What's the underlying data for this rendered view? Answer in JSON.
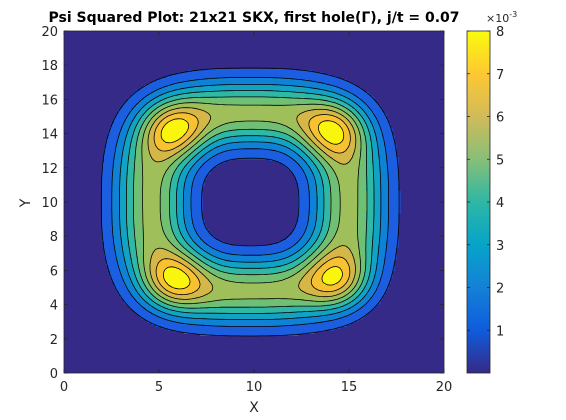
{
  "chart_data": {
    "type": "contour",
    "title": "Psi Squared Plot: 21x21 SKX, first hole(Γ), j/t = 0.07",
    "xlabel": "X",
    "ylabel": "Y",
    "xlim": [
      0,
      20
    ],
    "ylim": [
      0,
      20
    ],
    "xticks": [
      "0",
      "5",
      "10",
      "15",
      "20"
    ],
    "yticks": [
      "0",
      "2",
      "4",
      "6",
      "8",
      "10",
      "12",
      "14",
      "16",
      "18",
      "20"
    ],
    "colorbar": {
      "ticks": [
        "1",
        "2",
        "3",
        "4",
        "5",
        "6",
        "7",
        "8"
      ],
      "exponent_label": "×10",
      "exponent_power": "-3",
      "range": [
        0,
        0.008
      ],
      "colormap": "parula"
    },
    "contour_levels": [
      0.0008,
      0.0016,
      0.0024,
      0.0032,
      0.004,
      0.0048,
      0.0056,
      0.0064,
      0.0072
    ],
    "level_colors": [
      "#352a87",
      "#1b5fe0",
      "#0f82d5",
      "#12a3c4",
      "#2fb8a5",
      "#6fbf74",
      "#9fbf5a",
      "#d5b747",
      "#f7c132",
      "#f9f50d"
    ],
    "field": {
      "description": "ring of probability around center with four maxima at diagonals",
      "center": [
        9.8,
        10.0
      ],
      "ring_radius": 5.2,
      "ring_width": 3.1,
      "peak_value": 0.0082,
      "peaks": [
        [
          5.8,
          14.2
        ],
        [
          14.2,
          14.2
        ],
        [
          5.8,
          5.4
        ],
        [
          14.4,
          5.4
        ]
      ],
      "peak_boost": 0.0028,
      "peak_spread": 1.6
    }
  }
}
